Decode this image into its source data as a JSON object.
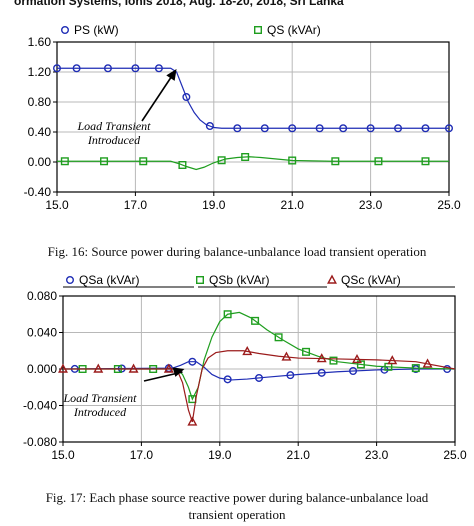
{
  "header": {
    "text": "ormation Systems, Iohis 2018, Aug. 18-20, 2018, Sri Lanka"
  },
  "captions": {
    "fig16": "Fig. 16: Source power during balance-unbalance load transient operation",
    "fig17_line1": "Fig. 17: Each phase source reactive power during balance-unbalance load",
    "fig17_line2": "transient operation"
  },
  "colors": {
    "blue": "#1f2db5",
    "green": "#1f9e1f",
    "red": "#9b1b1b",
    "grid": "#b8b8b8"
  },
  "chart_data": [
    {
      "type": "line",
      "title": "",
      "xlabel": "",
      "ylabel": "",
      "xlim": [
        15.0,
        25.0
      ],
      "ylim": [
        -0.4,
        1.6
      ],
      "xticks": [
        "15.0",
        "17.0",
        "19.0",
        "21.0",
        "23.0",
        "25.0"
      ],
      "xtick_values": [
        15,
        17,
        19,
        21,
        23,
        25
      ],
      "yticks": [
        "1.60",
        "1.20",
        "0.80",
        "0.40",
        "0.00",
        "-0.40"
      ],
      "ytick_values": [
        1.6,
        1.2,
        0.8,
        0.4,
        0.0,
        -0.4
      ],
      "grid": true,
      "legend_position": "top",
      "annotation": {
        "line1": "Load Transient",
        "line2": "Introduced",
        "x": 18.05,
        "y": 1.24
      },
      "series": [
        {
          "name": "PS (kW)",
          "color": "blue",
          "marker": "circle",
          "x": [
            15.0,
            17.9,
            18.05,
            18.2,
            18.35,
            18.5,
            18.65,
            18.8,
            19.0,
            19.2,
            19.5,
            20.0,
            21.0,
            22.0,
            23.0,
            25.0
          ],
          "y": [
            1.25,
            1.25,
            1.2,
            1.0,
            0.8,
            0.66,
            0.56,
            0.5,
            0.46,
            0.45,
            0.45,
            0.45,
            0.45,
            0.45,
            0.45,
            0.45
          ],
          "marker_x": [
            15.0,
            15.5,
            16.3,
            17.0,
            17.6,
            18.3,
            18.9,
            19.6,
            20.3,
            21.0,
            21.7,
            22.3,
            23.0,
            23.7,
            24.4,
            25.0
          ]
        },
        {
          "name": "QS (kVAr)",
          "color": "green",
          "marker": "square",
          "x": [
            15.0,
            17.9,
            18.1,
            18.3,
            18.55,
            18.75,
            19.0,
            19.3,
            19.6,
            19.9,
            20.2,
            20.6,
            21.0,
            22.0,
            23.0,
            25.0
          ],
          "y": [
            0.01,
            0.01,
            -0.02,
            -0.06,
            -0.1,
            -0.07,
            -0.01,
            0.04,
            0.06,
            0.07,
            0.06,
            0.04,
            0.02,
            0.01,
            0.01,
            0.01
          ],
          "marker_x": [
            15.2,
            16.2,
            17.2,
            18.2,
            19.2,
            19.8,
            21.0,
            22.1,
            23.2,
            24.4
          ]
        }
      ]
    },
    {
      "type": "line",
      "title": "",
      "xlabel": "",
      "ylabel": "",
      "xlim": [
        15.0,
        25.0
      ],
      "ylim": [
        -0.08,
        0.08
      ],
      "xticks": [
        "15.0",
        "17.0",
        "19.0",
        "21.0",
        "23.0",
        "25.0"
      ],
      "xtick_values": [
        15,
        17,
        19,
        21,
        23,
        25
      ],
      "yticks": [
        "0.080",
        "0.040",
        "0.000",
        "-0.040",
        "-0.080"
      ],
      "ytick_values": [
        0.08,
        0.04,
        0.0,
        -0.04,
        -0.08
      ],
      "grid": true,
      "legend_position": "top",
      "annotation": {
        "line1": "Load Transient",
        "line2": "Introduced",
        "x": 18.1,
        "y": 0.0
      },
      "series": [
        {
          "name": "QSa (kVAr)",
          "color": "blue",
          "marker": "circle",
          "x": [
            15.0,
            17.8,
            18.0,
            18.2,
            18.4,
            18.6,
            18.8,
            19.0,
            19.3,
            19.7,
            20.2,
            21.0,
            22.0,
            23.0,
            24.0,
            25.0
          ],
          "y": [
            0.0,
            0.001,
            0.004,
            0.008,
            0.008,
            0.002,
            -0.006,
            -0.01,
            -0.012,
            -0.011,
            -0.009,
            -0.006,
            -0.003,
            -0.001,
            0.0,
            0.0
          ],
          "marker_x": [
            15.3,
            16.5,
            17.7,
            18.3,
            19.2,
            20.0,
            20.8,
            21.6,
            22.4,
            23.2,
            24.0,
            24.8
          ]
        },
        {
          "name": "QSb (kVAr)",
          "color": "green",
          "marker": "square",
          "x": [
            15.0,
            17.9,
            18.05,
            18.2,
            18.3,
            18.45,
            18.6,
            18.8,
            19.0,
            19.2,
            19.5,
            19.8,
            20.2,
            20.6,
            21.0,
            21.5,
            22.0,
            23.0,
            24.0,
            25.0
          ],
          "y": [
            0.0,
            0.0,
            -0.006,
            -0.02,
            -0.033,
            -0.02,
            0.01,
            0.035,
            0.052,
            0.06,
            0.062,
            0.056,
            0.043,
            0.032,
            0.022,
            0.014,
            0.008,
            0.003,
            0.001,
            0.0
          ],
          "marker_x": [
            15.5,
            16.4,
            17.3,
            18.3,
            19.2,
            19.9,
            20.5,
            21.2,
            21.9,
            22.6,
            23.3,
            24.0
          ]
        },
        {
          "name": "QSc (kVAr)",
          "color": "red",
          "marker": "triangle",
          "x": [
            15.0,
            17.9,
            18.05,
            18.2,
            18.3,
            18.4,
            18.55,
            18.7,
            18.9,
            19.2,
            19.6,
            20.0,
            20.5,
            21.0,
            22.0,
            23.0,
            24.0,
            25.0
          ],
          "y": [
            0.0,
            0.0,
            -0.015,
            -0.045,
            -0.058,
            -0.03,
            0.0,
            0.012,
            0.018,
            0.02,
            0.02,
            0.017,
            0.014,
            0.012,
            0.011,
            0.01,
            0.008,
            0.0
          ],
          "marker_x": [
            15.0,
            15.9,
            16.8,
            17.7,
            18.3,
            19.7,
            20.7,
            21.6,
            22.5,
            23.4,
            24.3
          ]
        }
      ]
    }
  ]
}
